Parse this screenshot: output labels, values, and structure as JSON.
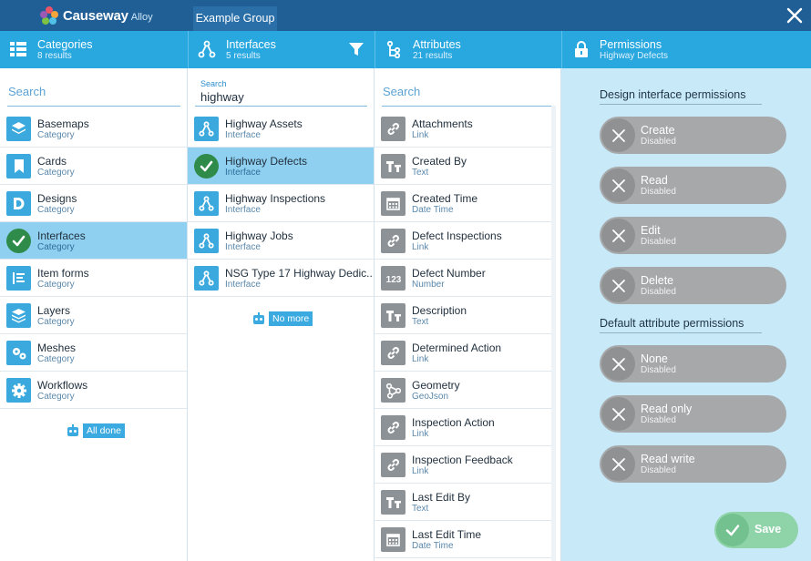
{
  "app": {
    "brand": "Causeway",
    "brand_sub": "Alloy",
    "group_tab": "Example Group"
  },
  "categories": {
    "title": "Categories",
    "subtitle": "8 results",
    "search_placeholder": "Search",
    "items": [
      {
        "label": "Basemaps",
        "sub": "Category",
        "icon": "layers-stack-icon"
      },
      {
        "label": "Cards",
        "sub": "Category",
        "icon": "bookmark-icon"
      },
      {
        "label": "Designs",
        "sub": "Category",
        "icon": "design-d-icon"
      },
      {
        "label": "Interfaces",
        "sub": "Category",
        "icon": "check-icon",
        "selected": true
      },
      {
        "label": "Item forms",
        "sub": "Category",
        "icon": "form-icon"
      },
      {
        "label": "Layers",
        "sub": "Category",
        "icon": "layers-icon"
      },
      {
        "label": "Meshes",
        "sub": "Category",
        "icon": "gears-icon"
      },
      {
        "label": "Workflows",
        "sub": "Category",
        "icon": "gear-icon"
      }
    ],
    "end_label": "All done"
  },
  "interfaces": {
    "title": "Interfaces",
    "subtitle": "5 results",
    "search_label": "Search",
    "search_value": "highway",
    "items": [
      {
        "label": "Highway Assets",
        "sub": "Interface"
      },
      {
        "label": "Highway Defects",
        "sub": "Interface",
        "selected": true
      },
      {
        "label": "Highway Inspections",
        "sub": "Interface"
      },
      {
        "label": "Highway Jobs",
        "sub": "Interface"
      },
      {
        "label": "NSG Type 17 Highway Dedic...",
        "sub": "Interface"
      }
    ],
    "end_label": "No more"
  },
  "attributes": {
    "title": "Attributes",
    "subtitle": "21 results",
    "search_placeholder": "Search",
    "items": [
      {
        "label": "Attachments",
        "sub": "Link",
        "icon": "link-icon"
      },
      {
        "label": "Created By",
        "sub": "Text",
        "icon": "text-icon"
      },
      {
        "label": "Created Time",
        "sub": "Date Time",
        "icon": "calendar-icon"
      },
      {
        "label": "Defect Inspections",
        "sub": "Link",
        "icon": "link-icon"
      },
      {
        "label": "Defect Number",
        "sub": "Number",
        "icon": "number-icon"
      },
      {
        "label": "Description",
        "sub": "Text",
        "icon": "text-icon"
      },
      {
        "label": "Determined Action",
        "sub": "Link",
        "icon": "link-icon"
      },
      {
        "label": "Geometry",
        "sub": "GeoJson",
        "icon": "geometry-icon"
      },
      {
        "label": "Inspection Action",
        "sub": "Link",
        "icon": "link-icon"
      },
      {
        "label": "Inspection Feedback",
        "sub": "Link",
        "icon": "link-icon"
      },
      {
        "label": "Last Edit By",
        "sub": "Text",
        "icon": "text-icon"
      },
      {
        "label": "Last Edit Time",
        "sub": "Date Time",
        "icon": "calendar-icon"
      }
    ]
  },
  "permissions": {
    "title": "Permissions",
    "subtitle": "Highway Defects",
    "design_heading": "Design interface permissions",
    "design": [
      {
        "label": "Create",
        "state": "Disabled"
      },
      {
        "label": "Read",
        "state": "Disabled"
      },
      {
        "label": "Edit",
        "state": "Disabled"
      },
      {
        "label": "Delete",
        "state": "Disabled"
      }
    ],
    "attr_heading": "Default attribute permissions",
    "attr": [
      {
        "label": "None",
        "state": "Disabled"
      },
      {
        "label": "Read only",
        "state": "Disabled"
      },
      {
        "label": "Read write",
        "state": "Disabled"
      }
    ],
    "save_label": "Save"
  },
  "colors": {
    "topbar": "#1f5f96",
    "header": "#29a8e0",
    "selected": "#8fd0f0",
    "check": "#2e8b4a",
    "perm_bg": "#c8e9f8",
    "toggle_off": "#a6a8aa",
    "save": "#8fd4a9"
  }
}
